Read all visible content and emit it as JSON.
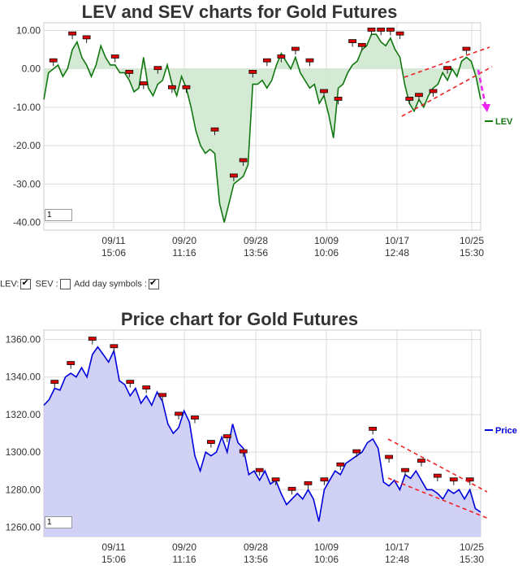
{
  "chart_data": [
    {
      "type": "line",
      "title": "LEV and SEV charts for Gold Futures",
      "xlabel": "",
      "ylabel": "",
      "ylim": [
        -42,
        12
      ],
      "yticks": [
        "10.00",
        "0.00",
        "-10.00",
        "-20.00",
        "-30.00",
        "-40.00"
      ],
      "ytick_values": [
        10,
        0,
        -10,
        -20,
        -30,
        -40
      ],
      "xticks": [
        {
          "date": "09/11",
          "time": "15:06"
        },
        {
          "date": "09/20",
          "time": "11:16"
        },
        {
          "date": "09/28",
          "time": "13:56"
        },
        {
          "date": "10/09",
          "time": "10:06"
        },
        {
          "date": "10/17",
          "time": "12:48"
        },
        {
          "date": "10/25",
          "time": "15:30"
        }
      ],
      "series": [
        {
          "name": "LEV",
          "color": "#117711",
          "fill": "#cfe8cf",
          "points": [
            [
              0,
              -8
            ],
            [
              1,
              -1
            ],
            [
              2,
              0
            ],
            [
              3,
              1
            ],
            [
              4,
              -2
            ],
            [
              5,
              0
            ],
            [
              6,
              5
            ],
            [
              7,
              7
            ],
            [
              8,
              3
            ],
            [
              9,
              1
            ],
            [
              10,
              -2
            ],
            [
              11,
              1
            ],
            [
              12,
              6
            ],
            [
              13,
              3
            ],
            [
              14,
              1
            ],
            [
              15,
              1
            ],
            [
              16,
              -1
            ],
            [
              17,
              -1
            ],
            [
              18,
              -3
            ],
            [
              19,
              -6
            ],
            [
              20,
              -5
            ],
            [
              21,
              3
            ],
            [
              22,
              -5
            ],
            [
              23,
              -7
            ],
            [
              24,
              -4
            ],
            [
              25,
              -3
            ],
            [
              26,
              1
            ],
            [
              27,
              -4
            ],
            [
              28,
              -7
            ],
            [
              29,
              -2
            ],
            [
              30,
              -5
            ],
            [
              31,
              -10
            ],
            [
              32,
              -16
            ],
            [
              33,
              -20
            ],
            [
              34,
              -22
            ],
            [
              35,
              -21
            ],
            [
              36,
              -22
            ],
            [
              37,
              -35
            ],
            [
              38,
              -40
            ],
            [
              39,
              -35
            ],
            [
              40,
              -30
            ],
            [
              41,
              -29
            ],
            [
              42,
              -28
            ],
            [
              43,
              -25
            ],
            [
              44,
              -4
            ],
            [
              45,
              -4
            ],
            [
              46,
              -3
            ],
            [
              47,
              -5
            ],
            [
              48,
              -3
            ],
            [
              49,
              1
            ],
            [
              50,
              4
            ],
            [
              51,
              2
            ],
            [
              52,
              0
            ],
            [
              53,
              3
            ],
            [
              54,
              -1
            ],
            [
              55,
              -3
            ],
            [
              56,
              -5
            ],
            [
              57,
              -4
            ],
            [
              58,
              -9
            ],
            [
              59,
              -7
            ],
            [
              60,
              -12
            ],
            [
              61,
              -18
            ],
            [
              62,
              -5
            ],
            [
              63,
              -4
            ],
            [
              64,
              -1
            ],
            [
              65,
              1
            ],
            [
              66,
              2
            ],
            [
              67,
              5
            ],
            [
              68,
              6
            ],
            [
              69,
              9
            ],
            [
              70,
              9
            ],
            [
              71,
              7
            ],
            [
              72,
              6
            ],
            [
              73,
              8
            ],
            [
              74,
              5
            ],
            [
              75,
              3
            ],
            [
              76,
              -4
            ],
            [
              77,
              -9
            ],
            [
              78,
              -11
            ],
            [
              79,
              -8
            ],
            [
              80,
              -10
            ],
            [
              81,
              -7
            ],
            [
              82,
              -5
            ],
            [
              83,
              -4
            ],
            [
              84,
              -1
            ],
            [
              85,
              -3
            ],
            [
              86,
              0
            ],
            [
              87,
              -2
            ],
            [
              88,
              2
            ],
            [
              89,
              3
            ],
            [
              90,
              2
            ],
            [
              91,
              -2
            ],
            [
              92,
              -8
            ]
          ]
        }
      ],
      "symbols": [
        [
          2,
          2
        ],
        [
          6,
          9
        ],
        [
          9,
          8
        ],
        [
          15,
          3
        ],
        [
          18,
          -1
        ],
        [
          21,
          -4
        ],
        [
          24,
          0
        ],
        [
          27,
          -5
        ],
        [
          30,
          -5
        ],
        [
          36,
          -16
        ],
        [
          40,
          -28
        ],
        [
          42,
          -24
        ],
        [
          44,
          -1
        ],
        [
          47,
          2
        ],
        [
          50,
          3
        ],
        [
          53,
          5
        ],
        [
          56,
          2
        ],
        [
          59,
          -6
        ],
        [
          62,
          -8
        ],
        [
          65,
          7
        ],
        [
          67,
          6
        ],
        [
          69,
          10
        ],
        [
          71,
          10
        ],
        [
          73,
          10
        ],
        [
          75,
          9
        ],
        [
          77,
          -8
        ],
        [
          79,
          -7
        ],
        [
          82,
          -6
        ],
        [
          85,
          0
        ],
        [
          89,
          5
        ]
      ],
      "legend": {
        "label": "LEV",
        "position": "right"
      },
      "grid": true,
      "input_value": "1"
    },
    {
      "type": "area",
      "title": "Price chart for Gold Futures",
      "xlabel": "",
      "ylabel": "",
      "ylim": [
        1255,
        1365
      ],
      "yticks": [
        "1360.00",
        "1340.00",
        "1320.00",
        "1300.00",
        "1280.00",
        "1260.00"
      ],
      "ytick_values": [
        1360,
        1340,
        1320,
        1300,
        1280,
        1260
      ],
      "xticks": [
        {
          "date": "09/11",
          "time": "15:06"
        },
        {
          "date": "09/20",
          "time": "11:16"
        },
        {
          "date": "09/28",
          "time": "13:56"
        },
        {
          "date": "10/09",
          "time": "10:06"
        },
        {
          "date": "10/17",
          "time": "12:48"
        },
        {
          "date": "10/25",
          "time": "15:30"
        }
      ],
      "series": [
        {
          "name": "Price",
          "color": "#0000dd",
          "fill": "#ccccf5",
          "points": [
            [
              0,
              1325
            ],
            [
              1,
              1328
            ],
            [
              2,
              1334
            ],
            [
              3,
              1333
            ],
            [
              4,
              1340
            ],
            [
              5,
              1342
            ],
            [
              6,
              1340
            ],
            [
              7,
              1345
            ],
            [
              8,
              1340
            ],
            [
              9,
              1352
            ],
            [
              10,
              1356
            ],
            [
              11,
              1352
            ],
            [
              12,
              1348
            ],
            [
              13,
              1354
            ],
            [
              14,
              1338
            ],
            [
              15,
              1336
            ],
            [
              16,
              1330
            ],
            [
              17,
              1334
            ],
            [
              18,
              1326
            ],
            [
              19,
              1330
            ],
            [
              20,
              1325
            ],
            [
              21,
              1332
            ],
            [
              22,
              1327
            ],
            [
              23,
              1315
            ],
            [
              24,
              1310
            ],
            [
              25,
              1313
            ],
            [
              26,
              1322
            ],
            [
              27,
              1316
            ],
            [
              28,
              1298
            ],
            [
              29,
              1290
            ],
            [
              30,
              1300
            ],
            [
              31,
              1298
            ],
            [
              32,
              1300
            ],
            [
              33,
              1308
            ],
            [
              34,
              1300
            ],
            [
              35,
              1315
            ],
            [
              36,
              1305
            ],
            [
              37,
              1302
            ],
            [
              38,
              1288
            ],
            [
              39,
              1290
            ],
            [
              40,
              1285
            ],
            [
              41,
              1290
            ],
            [
              42,
              1283
            ],
            [
              43,
              1285
            ],
            [
              44,
              1278
            ],
            [
              45,
              1272
            ],
            [
              46,
              1275
            ],
            [
              47,
              1278
            ],
            [
              48,
              1275
            ],
            [
              49,
              1280
            ],
            [
              50,
              1275
            ],
            [
              51,
              1263
            ],
            [
              52,
              1280
            ],
            [
              53,
              1285
            ],
            [
              54,
              1290
            ],
            [
              55,
              1288
            ],
            [
              56,
              1294
            ],
            [
              57,
              1296
            ],
            [
              58,
              1298
            ],
            [
              59,
              1300
            ],
            [
              60,
              1305
            ],
            [
              61,
              1307
            ],
            [
              62,
              1302
            ],
            [
              63,
              1284
            ],
            [
              64,
              1282
            ],
            [
              65,
              1285
            ],
            [
              66,
              1280
            ],
            [
              67,
              1288
            ],
            [
              68,
              1286
            ],
            [
              69,
              1290
            ],
            [
              70,
              1285
            ],
            [
              71,
              1280
            ],
            [
              72,
              1280
            ],
            [
              73,
              1278
            ],
            [
              74,
              1275
            ],
            [
              75,
              1280
            ],
            [
              76,
              1278
            ],
            [
              77,
              1280
            ],
            [
              78,
              1275
            ],
            [
              79,
              1280
            ],
            [
              80,
              1270
            ],
            [
              81,
              1268
            ]
          ]
        }
      ],
      "symbols": [
        [
          2,
          1337
        ],
        [
          5,
          1347
        ],
        [
          9,
          1360
        ],
        [
          13,
          1356
        ],
        [
          16,
          1337
        ],
        [
          19,
          1334
        ],
        [
          22,
          1330
        ],
        [
          25,
          1320
        ],
        [
          28,
          1318
        ],
        [
          31,
          1305
        ],
        [
          34,
          1308
        ],
        [
          37,
          1300
        ],
        [
          40,
          1290
        ],
        [
          43,
          1285
        ],
        [
          46,
          1280
        ],
        [
          49,
          1283
        ],
        [
          52,
          1285
        ],
        [
          55,
          1293
        ],
        [
          58,
          1300
        ],
        [
          61,
          1312
        ],
        [
          64,
          1297
        ],
        [
          67,
          1290
        ],
        [
          70,
          1295
        ],
        [
          73,
          1287
        ],
        [
          76,
          1285
        ],
        [
          79,
          1285
        ]
      ],
      "legend": {
        "label": "Price",
        "position": "right"
      },
      "grid": true,
      "input_value": "1"
    }
  ],
  "controls": {
    "lev_label": "LEV:",
    "sev_label": "SEV :",
    "day_symbols_label": "Add day symbols :",
    "lev_checked": true,
    "sev_checked": false,
    "day_symbols_checked": true
  },
  "colors": {
    "trend_lines": "#ee2222",
    "forecast_arrow": "#ee22ee",
    "symbol": "#dd0000"
  }
}
